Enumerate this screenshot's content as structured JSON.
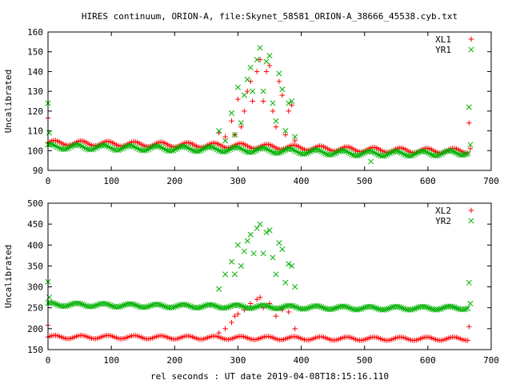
{
  "figure_title": "HIRES continuum, ORION-A, file:Skynet_58581_ORION-A_38666_45538.cyb.txt",
  "shared_xlabel": "rel seconds : UT date 2019-04-08T18:15:16.110",
  "colors": {
    "red": "#ff0000",
    "green": "#00b000",
    "axis": "#000000"
  },
  "chart_data": [
    {
      "type": "scatter",
      "title": "HIRES continuum, ORION-A, file:Skynet_58581_ORION-A_38666_45538.cyb.txt",
      "xlabel": "",
      "ylabel": "Uncalibrated",
      "xlim": [
        0,
        700
      ],
      "ylim": [
        90,
        160
      ],
      "xticks": [
        0,
        100,
        200,
        300,
        400,
        500,
        600,
        700
      ],
      "yticks": [
        90,
        100,
        110,
        120,
        130,
        140,
        150,
        160
      ],
      "legend_position": "top-right",
      "series": [
        {
          "name": "XL1",
          "marker": "plus",
          "color": "#ff0000",
          "baseline": {
            "x": [
              0,
              100,
              200,
              300,
              400,
              500,
              600,
              665
            ],
            "y": [
              104,
              103.5,
              103,
              102.5,
              101.5,
              100.5,
              100,
              100
            ]
          },
          "wobble": {
            "amplitude": 1.2,
            "period": 42,
            "step": 3
          },
          "points": [
            [
              0,
              116.5
            ],
            [
              270,
              109
            ],
            [
              280,
              107
            ],
            [
              290,
              115
            ],
            [
              295,
              108
            ],
            [
              300,
              126
            ],
            [
              305,
              112
            ],
            [
              310,
              120
            ],
            [
              315,
              130
            ],
            [
              320,
              135
            ],
            [
              323,
              125
            ],
            [
              330,
              140
            ],
            [
              335,
              146
            ],
            [
              340,
              125
            ],
            [
              345,
              140
            ],
            [
              350,
              143
            ],
            [
              355,
              120
            ],
            [
              360,
              112
            ],
            [
              365,
              135
            ],
            [
              370,
              128
            ],
            [
              375,
              108
            ],
            [
              380,
              120
            ],
            [
              385,
              123
            ],
            [
              390,
              105
            ],
            [
              665,
              114
            ],
            [
              667,
              101
            ]
          ]
        },
        {
          "name": "YR1",
          "marker": "cross",
          "color": "#00b000",
          "baseline": {
            "x": [
              0,
              100,
              200,
              300,
              400,
              500,
              600,
              665
            ],
            "y": [
              102,
              101.5,
              101,
              100.5,
              99.5,
              98.5,
              98.5,
              99
            ]
          },
          "wobble": {
            "amplitude": 1.2,
            "period": 42,
            "step": 3
          },
          "points": [
            [
              0,
              124
            ],
            [
              2,
              109
            ],
            [
              270,
              110
            ],
            [
              280,
              105
            ],
            [
              290,
              119
            ],
            [
              295,
              108
            ],
            [
              300,
              132
            ],
            [
              305,
              114
            ],
            [
              310,
              128
            ],
            [
              315,
              136
            ],
            [
              320,
              142
            ],
            [
              323,
              130
            ],
            [
              330,
              146
            ],
            [
              335,
              152
            ],
            [
              340,
              130
            ],
            [
              345,
              145
            ],
            [
              350,
              148
            ],
            [
              355,
              124
            ],
            [
              360,
              115
            ],
            [
              365,
              139
            ],
            [
              370,
              131
            ],
            [
              375,
              110
            ],
            [
              380,
              124
            ],
            [
              385,
              125
            ],
            [
              390,
              107
            ],
            [
              510,
              94.5
            ],
            [
              665,
              122
            ],
            [
              667,
              103
            ]
          ]
        }
      ]
    },
    {
      "type": "scatter",
      "title": "",
      "xlabel": "rel seconds : UT date 2019-04-08T18:15:16.110",
      "ylabel": "Uncalibrated",
      "xlim": [
        0,
        700
      ],
      "ylim": [
        150,
        500
      ],
      "xticks": [
        0,
        100,
        200,
        300,
        400,
        500,
        600,
        700
      ],
      "yticks": [
        150,
        200,
        250,
        300,
        350,
        400,
        450,
        500
      ],
      "legend_position": "top-right",
      "series": [
        {
          "name": "XL2",
          "marker": "plus",
          "color": "#ff0000",
          "baseline": {
            "x": [
              0,
              100,
              200,
              300,
              400,
              500,
              600,
              665
            ],
            "y": [
              180,
              180,
              179,
              178,
              177,
              176,
              176,
              176
            ]
          },
          "wobble": {
            "amplitude": 4,
            "period": 42,
            "step": 3
          },
          "points": [
            [
              0,
              208
            ],
            [
              270,
              190
            ],
            [
              280,
              200
            ],
            [
              290,
              215
            ],
            [
              295,
              230
            ],
            [
              300,
              235
            ],
            [
              310,
              245
            ],
            [
              320,
              260
            ],
            [
              330,
              270
            ],
            [
              335,
              275
            ],
            [
              340,
              250
            ],
            [
              350,
              260
            ],
            [
              360,
              230
            ],
            [
              370,
              245
            ],
            [
              380,
              240
            ],
            [
              390,
              200
            ],
            [
              665,
              205
            ]
          ]
        },
        {
          "name": "YR2",
          "marker": "cross",
          "color": "#00b000",
          "baseline": {
            "x": [
              0,
              100,
              200,
              300,
              400,
              500,
              600,
              665
            ],
            "y": [
              258,
              256,
              254,
              253,
              251,
              249,
              249,
              250
            ]
          },
          "wobble": {
            "amplitude": 4,
            "period": 42,
            "step": 3
          },
          "points": [
            [
              0,
              312
            ],
            [
              2,
              275
            ],
            [
              270,
              295
            ],
            [
              280,
              330
            ],
            [
              290,
              360
            ],
            [
              295,
              330
            ],
            [
              300,
              400
            ],
            [
              305,
              350
            ],
            [
              310,
              385
            ],
            [
              315,
              410
            ],
            [
              320,
              425
            ],
            [
              325,
              380
            ],
            [
              330,
              440
            ],
            [
              335,
              450
            ],
            [
              340,
              380
            ],
            [
              345,
              430
            ],
            [
              350,
              435
            ],
            [
              355,
              370
            ],
            [
              360,
              330
            ],
            [
              365,
              405
            ],
            [
              370,
              390
            ],
            [
              375,
              310
            ],
            [
              380,
              355
            ],
            [
              385,
              350
            ],
            [
              390,
              300
            ],
            [
              665,
              310
            ],
            [
              667,
              260
            ]
          ]
        }
      ]
    }
  ]
}
